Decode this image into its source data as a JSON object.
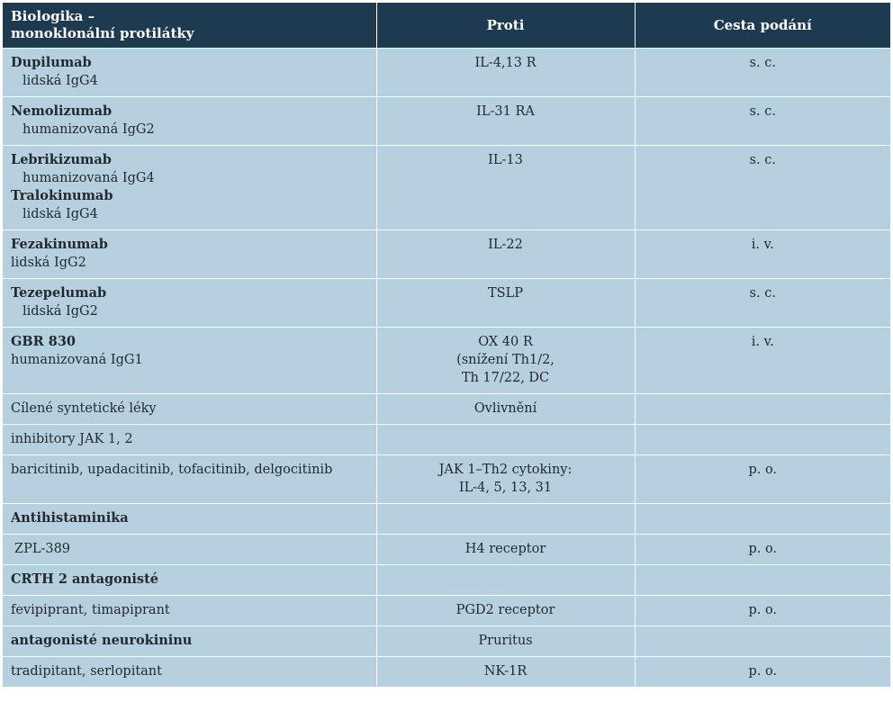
{
  "header": {
    "col1_line1": "Biologika –",
    "col1_line2": "monoklonální protilátky",
    "col2": "Proti",
    "col3": "Cesta podání"
  },
  "rows": [
    {
      "name": "Dupilumab",
      "sub": "lidská IgG4",
      "target": "IL-4,13 R",
      "route": "s. c."
    },
    {
      "name": "Nemolizumab",
      "sub": "humanizovaná IgG2",
      "target": "IL-31 RA",
      "route": "s. c."
    },
    {
      "name": "Lebrikizumab",
      "sub": "humanizovaná IgG4",
      "name2": "Tralokinumab",
      "sub2": "lidská IgG4",
      "target": "IL-13",
      "route": "s. c."
    },
    {
      "name": "Fezakinumab",
      "sub": "lidská IgG2",
      "target": "IL-22",
      "route": "i. v."
    },
    {
      "name": "Tezepelumab",
      "sub": "lidská IgG2",
      "target": "TSLP",
      "route": "s. c."
    },
    {
      "name": "GBR 830",
      "sub": "humanizovaná IgG1",
      "target_lines": [
        "OX 40 R",
        "(snížení Th1/2,",
        "Th 17/22, DC"
      ],
      "route": "i. v."
    },
    {
      "text": "Cílené syntetické léky",
      "target": "Ovlivnění",
      "route": ""
    },
    {
      "text": "inhibitory JAK 1, 2",
      "target": "",
      "route": ""
    },
    {
      "text": "baricitinib, upadacitinib, tofacitinib, delgocitinib",
      "target_lines": [
        "JAK 1–Th2 cytokiny:",
        "IL-4, 5, 13, 31"
      ],
      "route": "p. o."
    },
    {
      "text": "Antihistaminika",
      "target": "",
      "route": ""
    },
    {
      "text": "ZPL-389",
      "target": "H4 receptor",
      "route": "p. o."
    },
    {
      "text": "CRTH 2 antagonisté",
      "target": "",
      "route": ""
    },
    {
      "text": "fevipiprant, timapiprant",
      "target": "PGD2 receptor",
      "route": "p. o."
    },
    {
      "text": "antagonisté neurokininu",
      "target": "Pruritus",
      "route": ""
    },
    {
      "text": "tradipitant, serlopitant",
      "target": "NK-1R",
      "route": "p. o."
    }
  ]
}
